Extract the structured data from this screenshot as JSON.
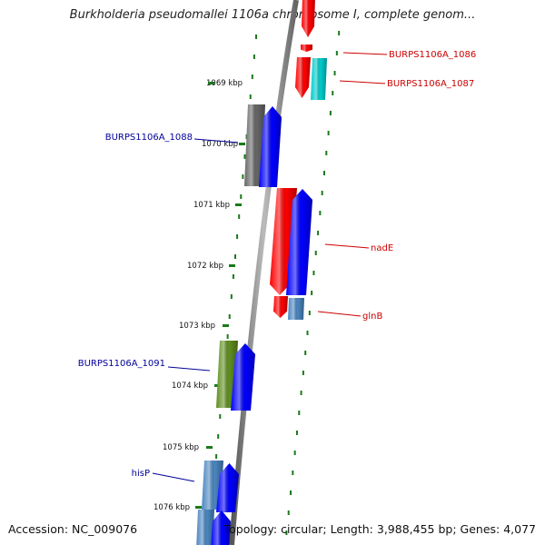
{
  "title": "Burkholderia pseudomallei 1106a chromosome I, complete genom...",
  "accession": "Accession: NC_009076",
  "topology": "Topology: circular; Length: 3,988,455 bp; Genes: 4,077",
  "colors": {
    "forward_label": "#cc0000",
    "reverse_label": "#000099",
    "tick": "#1a7a1a"
  },
  "kbp_ticks": [
    "1069 kbp",
    "1070 kbp",
    "1071 kbp",
    "1072 kbp",
    "1073 kbp",
    "1074 kbp",
    "1075 kbp",
    "1076 kbp"
  ],
  "genes": [
    {
      "label": "",
      "color": "#ff0000",
      "strand": "forward"
    },
    {
      "label": "BURPS1106A_1086",
      "color": "#ff0000",
      "strand": "forward"
    },
    {
      "label": "BURPS1106A_1087",
      "color": "#ff0000",
      "strand": "forward"
    },
    {
      "label": "",
      "color": "#00cccc",
      "strand": "forward"
    },
    {
      "label": "BURPS1106A_1088",
      "color": "#666666",
      "strand": "reverse"
    },
    {
      "label": "",
      "color": "#0000ff",
      "strand": "reverse"
    },
    {
      "label": "nadE",
      "color": "#ff0000",
      "strand": "forward"
    },
    {
      "label": "",
      "color": "#0000ff",
      "strand": "forward"
    },
    {
      "label": "glnB",
      "color": "#ff0000",
      "strand": "forward"
    },
    {
      "label": "",
      "color": "#4a86c0",
      "strand": "forward"
    },
    {
      "label": "BURPS1106A_1091",
      "color": "#5f8f1f",
      "strand": "reverse"
    },
    {
      "label": "",
      "color": "#0000ff",
      "strand": "reverse"
    },
    {
      "label": "hisP",
      "color": "#4a86c0",
      "strand": "reverse"
    },
    {
      "label": "",
      "color": "#0000ff",
      "strand": "reverse"
    },
    {
      "label": "",
      "color": "#4a86c0",
      "strand": "reverse"
    },
    {
      "label": "",
      "color": "#0000ff",
      "strand": "reverse"
    }
  ]
}
